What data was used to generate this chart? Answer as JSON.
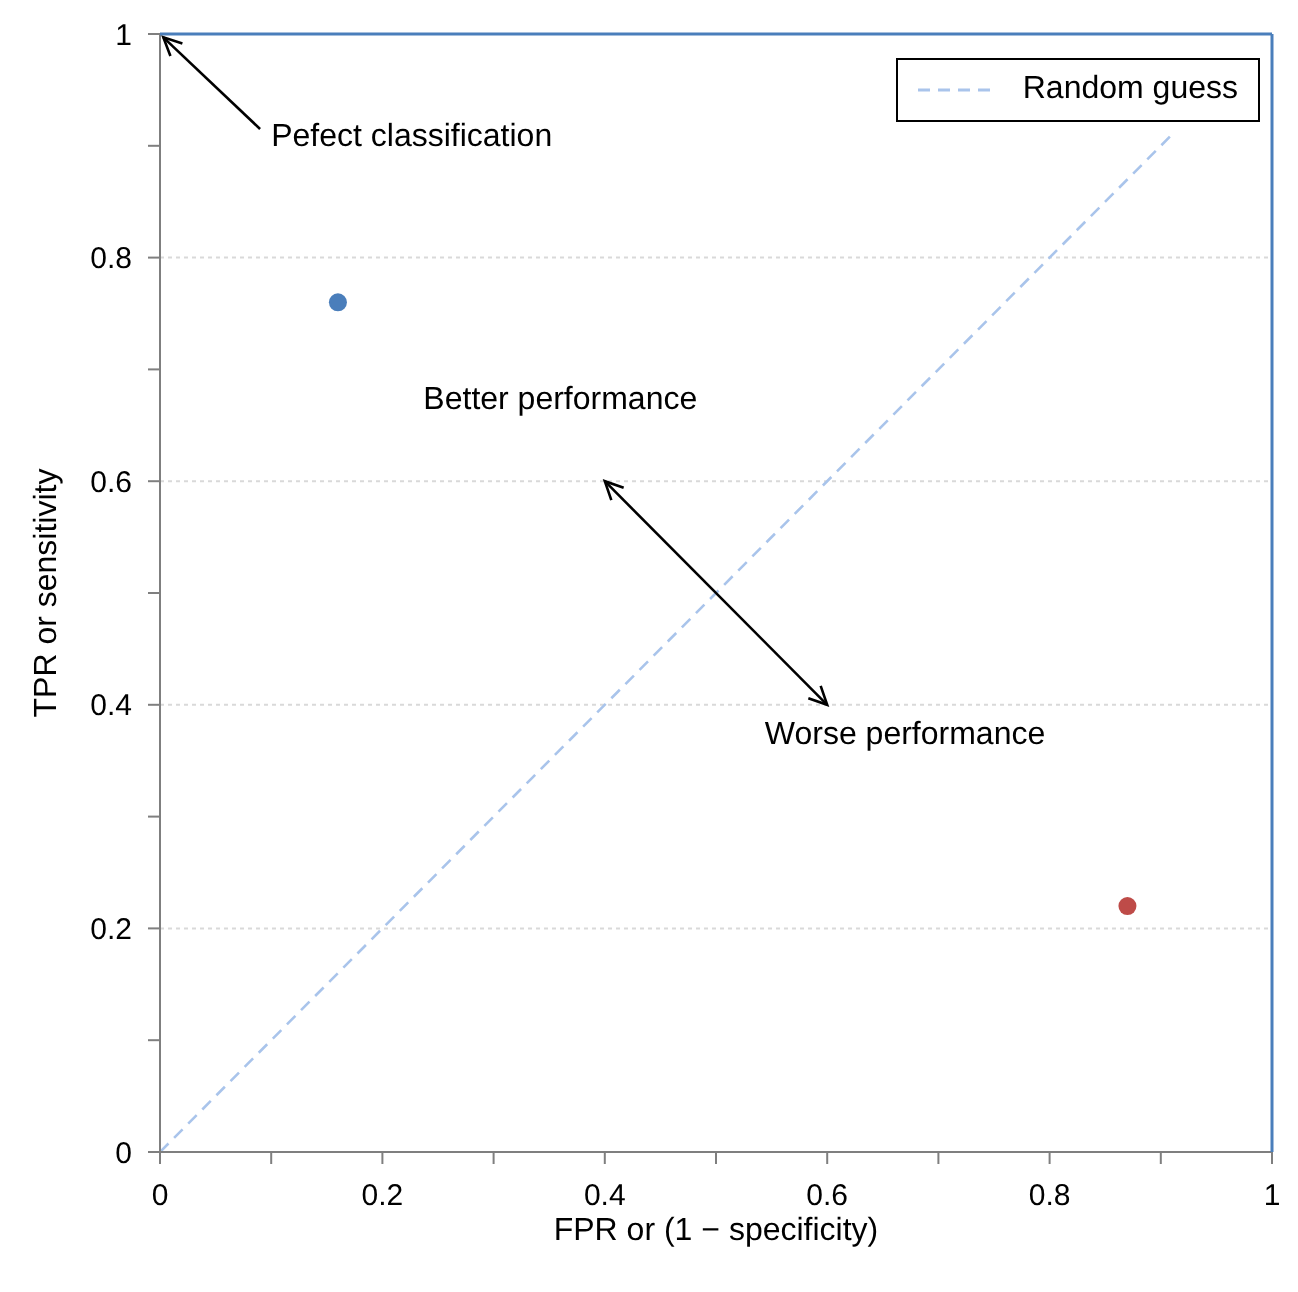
{
  "chart_data": {
    "type": "scatter",
    "xlabel": "FPR or (1 − specificity)",
    "ylabel": "TPR or sensitivity",
    "xlim": [
      0,
      1
    ],
    "ylim": [
      0,
      1
    ],
    "xticks": [
      0,
      {
        "value": 0.1,
        "label": null
      },
      0.2,
      {
        "value": 0.3,
        "label": null
      },
      0.4,
      {
        "value": 0.5,
        "label": null
      },
      0.6,
      {
        "value": 0.7,
        "label": null
      },
      0.8,
      {
        "value": 0.9,
        "label": null
      },
      1
    ],
    "yticks": [
      0,
      {
        "value": 0.1,
        "label": null
      },
      0.2,
      {
        "value": 0.3,
        "label": null
      },
      0.4,
      {
        "value": 0.5,
        "label": null
      },
      0.6,
      {
        "value": 0.7,
        "label": null
      },
      0.8,
      {
        "value": 0.9,
        "label": null
      },
      1
    ],
    "grid": "y",
    "legend": "top right",
    "marker": "circle",
    "series": [
      {
        "type": "line",
        "name": "Random guess",
        "color": "#a9c4eb",
        "line_style": "dashed",
        "marker": "none",
        "x": [
          0,
          0.91
        ],
        "values": [
          0,
          0.91
        ]
      },
      {
        "color": "#4a7ebb",
        "x": [
          0.16
        ],
        "values": [
          0.76
        ]
      },
      {
        "color": "#be4b48",
        "x": [
          0.87
        ],
        "values": [
          0.22
        ]
      }
    ],
    "annotations": [
      "Pefect classification",
      "Better performance",
      "Worse performance"
    ]
  }
}
